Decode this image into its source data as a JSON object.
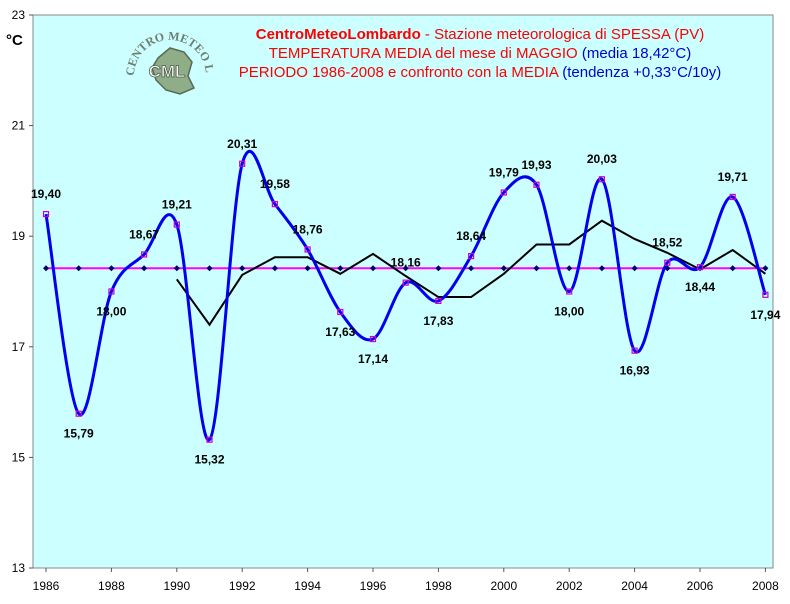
{
  "title": {
    "line1_brand": "CentroMeteoLombardo",
    "line1_rest": " - Stazione meteorologica di SPESSA (PV)",
    "line2_main": "TEMPERATURA MEDIA del mese di MAGGIO ",
    "line2_media": "(media 18,42°C)",
    "line3_main": "PERIODO 1986-2008 e confronto con la MEDIA ",
    "line3_trend": " (tendenza +0,33°C/10y)"
  },
  "logo": {
    "top_text": "CENTRO METEO LOMBARDO",
    "abbr": "CML"
  },
  "chart_data": {
    "type": "line",
    "ylabel": "°C",
    "ylim": [
      13,
      23
    ],
    "xlim": [
      1985.5,
      2008.5
    ],
    "yticks": [
      13,
      15,
      17,
      19,
      21,
      23
    ],
    "xticks": [
      1986,
      1988,
      1990,
      1992,
      1994,
      1996,
      1998,
      2000,
      2002,
      2004,
      2006,
      2008
    ],
    "grid": false,
    "background": "#ccffff",
    "series": [
      {
        "color": "#0000ee",
        "marker_color": "#cc00cc",
        "x": [
          1986,
          1987,
          1988,
          1989,
          1990,
          1991,
          1992,
          1993,
          1994,
          1995,
          1996,
          1997,
          1998,
          1999,
          2000,
          2001,
          2002,
          2003,
          2004,
          2005,
          2006,
          2007,
          2008
        ],
        "values": [
          19.4,
          15.79,
          18.0,
          18.67,
          19.21,
          15.32,
          20.31,
          19.58,
          18.76,
          17.63,
          17.14,
          18.16,
          17.83,
          18.64,
          19.79,
          19.93,
          18.0,
          20.03,
          16.93,
          18.52,
          18.44,
          19.71,
          17.94
        ],
        "labels": [
          "19,40",
          "15,79",
          "18,00",
          "18,67",
          "19,21",
          "15,32",
          "20,31",
          "19,58",
          "18,76",
          "17,63",
          "17,14",
          "18,16",
          "17,83",
          "18,64",
          "19,79",
          "19,93",
          "18,00",
          "20,03",
          "16,93",
          "18,52",
          "18,44",
          "19,71",
          "17,94"
        ]
      },
      {
        "color": "#000000",
        "x": [
          1990,
          1991,
          1992,
          1993,
          1994,
          1995,
          1996,
          1997,
          1998,
          1999,
          2000,
          2001,
          2002,
          2003,
          2004,
          2005,
          2006,
          2007,
          2008
        ],
        "values": [
          18.22,
          17.4,
          18.3,
          18.62,
          18.62,
          18.32,
          18.68,
          18.28,
          17.9,
          17.9,
          18.32,
          18.85,
          18.85,
          19.28,
          18.95,
          18.7,
          18.4,
          18.75,
          18.32
        ]
      },
      {
        "color": "#ff00ff",
        "marker_color": "#000066",
        "x": [
          1986,
          1987,
          1988,
          1989,
          1990,
          1991,
          1992,
          1993,
          1994,
          1995,
          1996,
          1997,
          1998,
          1999,
          2000,
          2001,
          2002,
          2003,
          2004,
          2005,
          2006,
          2007,
          2008
        ],
        "values": [
          18.42,
          18.42,
          18.42,
          18.42,
          18.42,
          18.42,
          18.42,
          18.42,
          18.42,
          18.42,
          18.42,
          18.42,
          18.42,
          18.42,
          18.42,
          18.42,
          18.42,
          18.42,
          18.42,
          18.42,
          18.42,
          18.42,
          18.42
        ]
      }
    ]
  }
}
